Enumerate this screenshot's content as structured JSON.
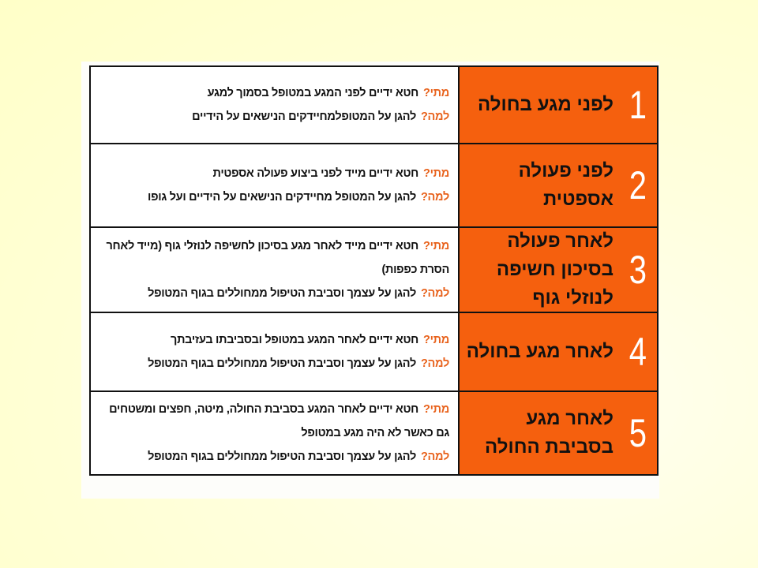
{
  "colors": {
    "background": "#FFFFCC",
    "header_fill": "#F5600E",
    "question_label": "#E8621C"
  },
  "labels": {
    "when": "מתי?",
    "why": "למה?"
  },
  "rows": [
    {
      "number": "1",
      "title": "לפני מגע בחולה",
      "when": "חטא ידיים לפני המגע במטופל בסמוך למגע",
      "why": "להגן על המטופלמחיידקים הנישאים על הידיים"
    },
    {
      "number": "2",
      "title": "לפני פעולה אספטית",
      "when": "חטא ידיים מייד לפני ביצוע פעולה אספטית",
      "why": "להגן על המטופל מחיידקים הנישאים על הידיים ועל גופו"
    },
    {
      "number": "3",
      "title": "לאחר פעולה בסיכון חשיפה לנוזלי גוף",
      "when": "חטא ידיים מייד לאחר מגע בסיכון לחשיפה לנוזלי גוף (מייד לאחר הסרת כפפות)",
      "why": "להגן על עצמך וסביבת הטיפול ממחוללים בגוף המטופל"
    },
    {
      "number": "4",
      "title": "לאחר מגע בחולה",
      "when": "חטא ידיים לאחר המגע במטופל ובסביבתו בעזיבתך",
      "why": "להגן על עצמך וסביבת הטיפול ממחוללים בגוף המטופל"
    },
    {
      "number": "5",
      "title": "לאחר מגע בסביבת החולה",
      "when": "חטא ידיים לאחר המגע בסביבת החולה, מיטה, חפצים ומשטחים גם כאשר לא היה מגע במטופל",
      "why": "להגן על עצמך וסביבת הטיפול ממחוללים בגוף המטופל"
    }
  ]
}
